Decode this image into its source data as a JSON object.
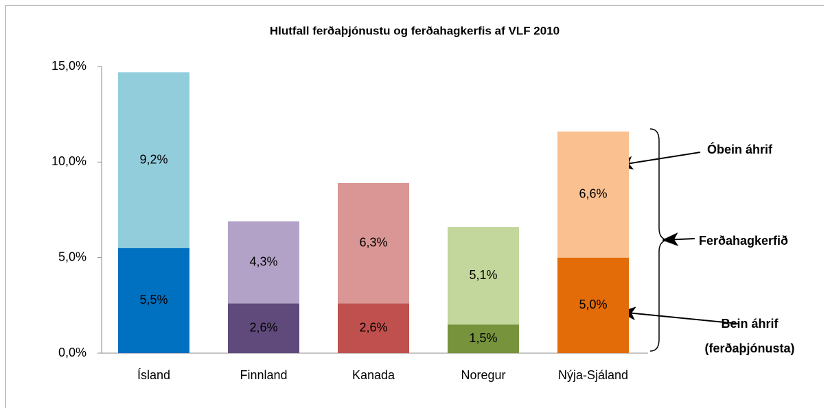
{
  "chart_data": {
    "type": "stacked_bar",
    "title": "Hlutfall ferðaþjónustu og ferðahagkerfis af VLF 2010",
    "categories": [
      "Ísland",
      "Finnland",
      "Kanada",
      "Noregur",
      "Nýja-Sjáland"
    ],
    "series": [
      {
        "colors": [
          "#0070c0",
          "#604a7b",
          "#c0504d",
          "#77933c",
          "#e36c09"
        ],
        "values": [
          5.5,
          2.6,
          2.6,
          1.5,
          5.0
        ],
        "value_labels": [
          "5,5%",
          "2,6%",
          "2,6%",
          "1,5%",
          "5,0%"
        ]
      },
      {
        "colors": [
          "#92cddc",
          "#b3a2c7",
          "#d99694",
          "#c3d69b",
          "#fac090"
        ],
        "values": [
          9.2,
          4.3,
          6.3,
          5.1,
          6.6
        ],
        "value_labels": [
          "9,2%",
          "4,3%",
          "6,3%",
          "5,1%",
          "6,6%"
        ]
      }
    ],
    "ylim": [
      0,
      15
    ],
    "yticks": [
      {
        "value": 0,
        "label": "0,0%"
      },
      {
        "value": 5,
        "label": "5,0%"
      },
      {
        "value": 10,
        "label": "10,0%"
      },
      {
        "value": 15,
        "label": "15,0%"
      }
    ],
    "annotations": [
      "Óbein áhrif",
      "Ferðahagkerfið",
      "Bein áhrif",
      "(ferðaþjónusta)"
    ]
  }
}
